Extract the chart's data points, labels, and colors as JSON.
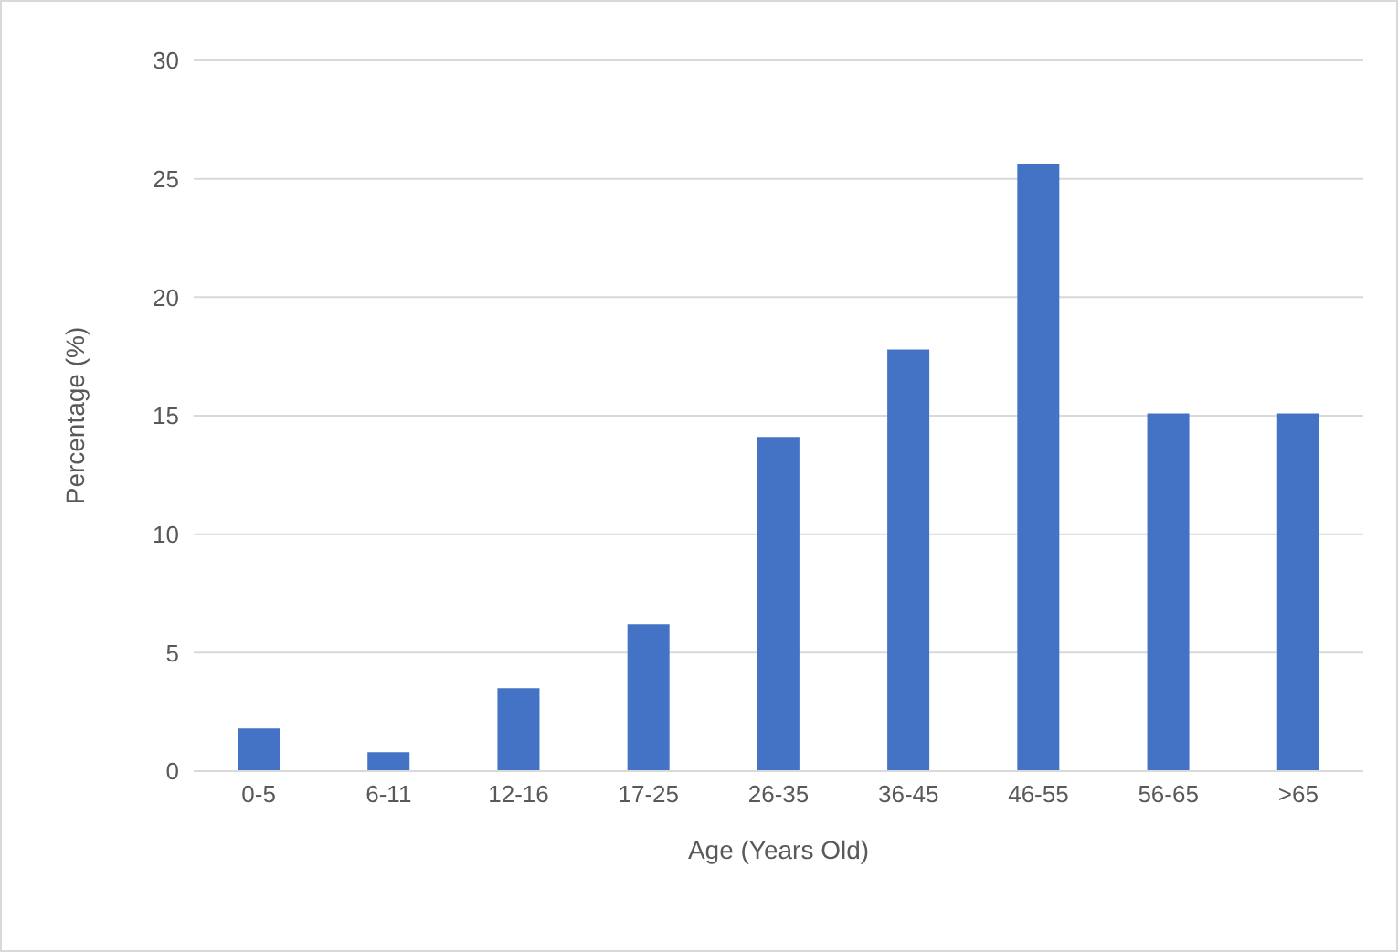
{
  "chart_data": {
    "type": "bar",
    "xlabel": "Age  (Years Old)",
    "ylabel": "Percentage  (%)",
    "categories": [
      "0-5",
      "6-11",
      "12-16",
      "17-25",
      "26-35",
      "36-45",
      "46-55",
      "56-65",
      ">65"
    ],
    "values": [
      1.8,
      0.8,
      3.5,
      6.2,
      14.1,
      17.8,
      25.6,
      15.1,
      15.1
    ],
    "color": "#4472c4",
    "ylim": [
      0,
      30
    ],
    "yticks": [
      0,
      5,
      10,
      15,
      20,
      25,
      30
    ],
    "grid": "y",
    "legend": false
  }
}
